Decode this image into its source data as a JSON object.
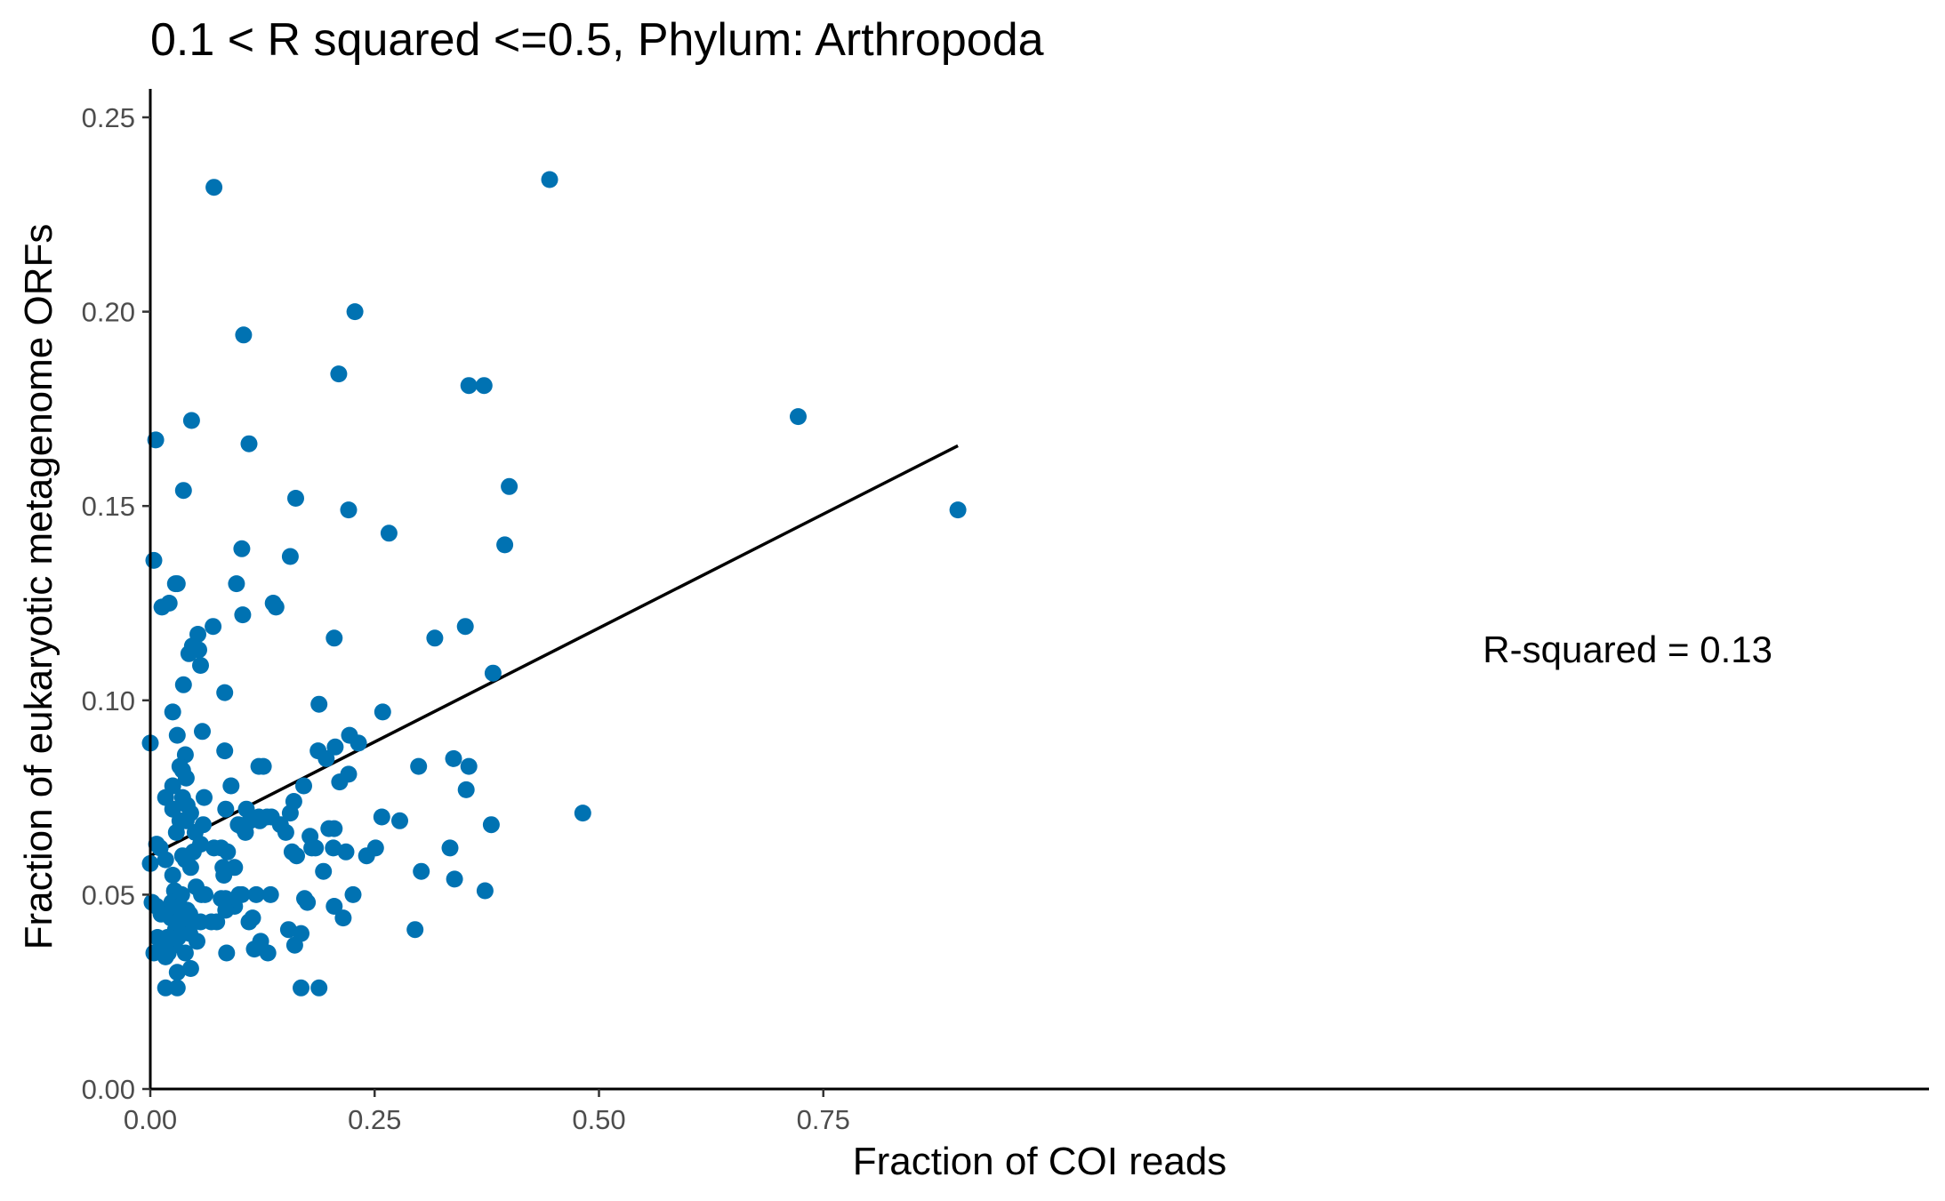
{
  "chart_data": {
    "type": "scatter",
    "title": "0.1 < R squared <=0.5, Phylum:  Arthropoda",
    "xlabel": "Fraction of COI reads",
    "ylabel": "Fraction of eukaryotic metagenome ORFs",
    "xlim": [
      0,
      0.99
    ],
    "ylim": [
      0,
      0.256
    ],
    "xticks": [
      {
        "value": 0,
        "label": "0.00"
      },
      {
        "value": 0.25,
        "label": "0.25"
      },
      {
        "value": 0.5,
        "label": "0.50"
      },
      {
        "value": 0.75,
        "label": "0.75"
      }
    ],
    "yticks": [
      {
        "value": 0,
        "label": "0.00"
      },
      {
        "value": 0.05,
        "label": "0.05"
      },
      {
        "value": 0.1,
        "label": "0.10"
      },
      {
        "value": 0.15,
        "label": "0.15"
      },
      {
        "value": 0.2,
        "label": "0.20"
      },
      {
        "value": 0.25,
        "label": "0.25"
      }
    ],
    "grid": false,
    "point_color": "#0072B2",
    "line_color": "#000000",
    "regression_line": {
      "x": [
        0,
        0.9
      ],
      "y": [
        0.06,
        0.1655
      ]
    },
    "annotation": "R-squared =  0.13",
    "points": [
      [
        0.071,
        0.232
      ],
      [
        0.445,
        0.234
      ],
      [
        0.228,
        0.2
      ],
      [
        0.104,
        0.194
      ],
      [
        0.21,
        0.184
      ],
      [
        0.355,
        0.181
      ],
      [
        0.372,
        0.181
      ],
      [
        0.722,
        0.173
      ],
      [
        0.046,
        0.172
      ],
      [
        0.006,
        0.167
      ],
      [
        0.11,
        0.166
      ],
      [
        0.4,
        0.155
      ],
      [
        0.037,
        0.154
      ],
      [
        0.162,
        0.152
      ],
      [
        0.9,
        0.149
      ],
      [
        0.221,
        0.149
      ],
      [
        0.266,
        0.143
      ],
      [
        0.395,
        0.14
      ],
      [
        0.102,
        0.139
      ],
      [
        0.156,
        0.137
      ],
      [
        0.004,
        0.136
      ],
      [
        0.028,
        0.13
      ],
      [
        0.03,
        0.13
      ],
      [
        0.096,
        0.13
      ],
      [
        0.137,
        0.125
      ],
      [
        0.021,
        0.125
      ],
      [
        0.013,
        0.124
      ],
      [
        0.14,
        0.124
      ],
      [
        0.103,
        0.122
      ],
      [
        0.07,
        0.119
      ],
      [
        0.351,
        0.119
      ],
      [
        0.053,
        0.117
      ],
      [
        0.317,
        0.116
      ],
      [
        0.205,
        0.116
      ],
      [
        0.047,
        0.114
      ],
      [
        0.054,
        0.113
      ],
      [
        0.043,
        0.112
      ],
      [
        0.056,
        0.109
      ],
      [
        0.382,
        0.107
      ],
      [
        0.037,
        0.104
      ],
      [
        0.083,
        0.102
      ],
      [
        0.259,
        0.097
      ],
      [
        0.025,
        0.097
      ],
      [
        0.188,
        0.099
      ],
      [
        0.058,
        0.092
      ],
      [
        0.222,
        0.091
      ],
      [
        0.03,
        0.091
      ],
      [
        0.232,
        0.089
      ],
      [
        0.0,
        0.089
      ],
      [
        0.206,
        0.088
      ],
      [
        0.187,
        0.087
      ],
      [
        0.083,
        0.087
      ],
      [
        0.039,
        0.086
      ],
      [
        0.338,
        0.085
      ],
      [
        0.196,
        0.085
      ],
      [
        0.299,
        0.083
      ],
      [
        0.355,
        0.083
      ],
      [
        0.121,
        0.083
      ],
      [
        0.126,
        0.083
      ],
      [
        0.033,
        0.083
      ],
      [
        0.036,
        0.082
      ],
      [
        0.221,
        0.081
      ],
      [
        0.04,
        0.08
      ],
      [
        0.211,
        0.079
      ],
      [
        0.171,
        0.078
      ],
      [
        0.025,
        0.078
      ],
      [
        0.09,
        0.078
      ],
      [
        0.352,
        0.077
      ],
      [
        0.017,
        0.075
      ],
      [
        0.06,
        0.075
      ],
      [
        0.036,
        0.075
      ],
      [
        0.16,
        0.074
      ],
      [
        0.041,
        0.073
      ],
      [
        0.084,
        0.072
      ],
      [
        0.156,
        0.071
      ],
      [
        0.107,
        0.072
      ],
      [
        0.025,
        0.072
      ],
      [
        0.482,
        0.071
      ],
      [
        0.045,
        0.071
      ],
      [
        0.121,
        0.07
      ],
      [
        0.13,
        0.07
      ],
      [
        0.135,
        0.07
      ],
      [
        0.258,
        0.07
      ],
      [
        0.033,
        0.069
      ],
      [
        0.111,
        0.069
      ],
      [
        0.278,
        0.069
      ],
      [
        0.04,
        0.069
      ],
      [
        0.059,
        0.068
      ],
      [
        0.098,
        0.068
      ],
      [
        0.122,
        0.069
      ],
      [
        0.145,
        0.068
      ],
      [
        0.38,
        0.068
      ],
      [
        0.205,
        0.067
      ],
      [
        0.199,
        0.067
      ],
      [
        0.104,
        0.067
      ],
      [
        0.151,
        0.066
      ],
      [
        0.178,
        0.065
      ],
      [
        0.05,
        0.066
      ],
      [
        0.029,
        0.066
      ],
      [
        0.106,
        0.066
      ],
      [
        0.056,
        0.063
      ],
      [
        0.007,
        0.063
      ],
      [
        0.011,
        0.062
      ],
      [
        0.071,
        0.062
      ],
      [
        0.079,
        0.062
      ],
      [
        0.18,
        0.062
      ],
      [
        0.184,
        0.062
      ],
      [
        0.204,
        0.062
      ],
      [
        0.251,
        0.062
      ],
      [
        0.334,
        0.062
      ],
      [
        0.086,
        0.061
      ],
      [
        0.048,
        0.061
      ],
      [
        0.036,
        0.06
      ],
      [
        0.158,
        0.061
      ],
      [
        0.218,
        0.061
      ],
      [
        0.163,
        0.06
      ],
      [
        0.241,
        0.06
      ],
      [
        0.039,
        0.059
      ],
      [
        0.017,
        0.059
      ],
      [
        0.0,
        0.058
      ],
      [
        0.045,
        0.057
      ],
      [
        0.081,
        0.057
      ],
      [
        0.094,
        0.057
      ],
      [
        0.193,
        0.056
      ],
      [
        0.302,
        0.056
      ],
      [
        0.025,
        0.055
      ],
      [
        0.082,
        0.055
      ],
      [
        0.339,
        0.054
      ],
      [
        0.051,
        0.052
      ],
      [
        0.057,
        0.05
      ],
      [
        0.027,
        0.051
      ],
      [
        0.061,
        0.05
      ],
      [
        0.099,
        0.05
      ],
      [
        0.102,
        0.05
      ],
      [
        0.373,
        0.051
      ],
      [
        0.226,
        0.05
      ],
      [
        0.118,
        0.05
      ],
      [
        0.134,
        0.05
      ],
      [
        0.035,
        0.05
      ],
      [
        0.084,
        0.049
      ],
      [
        0.079,
        0.049
      ],
      [
        0.172,
        0.049
      ],
      [
        0.024,
        0.048
      ],
      [
        0.002,
        0.048
      ],
      [
        0.175,
        0.048
      ],
      [
        0.007,
        0.047
      ],
      [
        0.205,
        0.047
      ],
      [
        0.094,
        0.047
      ],
      [
        0.026,
        0.047
      ],
      [
        0.033,
        0.047
      ],
      [
        0.084,
        0.046
      ],
      [
        0.041,
        0.046
      ],
      [
        0.012,
        0.045
      ],
      [
        0.044,
        0.045
      ],
      [
        0.023,
        0.044
      ],
      [
        0.215,
        0.044
      ],
      [
        0.114,
        0.044
      ],
      [
        0.035,
        0.044
      ],
      [
        0.03,
        0.043
      ],
      [
        0.056,
        0.043
      ],
      [
        0.074,
        0.043
      ],
      [
        0.11,
        0.043
      ],
      [
        0.068,
        0.043
      ],
      [
        0.039,
        0.042
      ],
      [
        0.028,
        0.041
      ],
      [
        0.154,
        0.041
      ],
      [
        0.295,
        0.041
      ],
      [
        0.044,
        0.04
      ],
      [
        0.034,
        0.04
      ],
      [
        0.168,
        0.04
      ],
      [
        0.031,
        0.039
      ],
      [
        0.019,
        0.039
      ],
      [
        0.008,
        0.039
      ],
      [
        0.052,
        0.038
      ],
      [
        0.123,
        0.038
      ],
      [
        0.017,
        0.038
      ],
      [
        0.014,
        0.037
      ],
      [
        0.027,
        0.037
      ],
      [
        0.161,
        0.037
      ],
      [
        0.116,
        0.036
      ],
      [
        0.004,
        0.035
      ],
      [
        0.039,
        0.035
      ],
      [
        0.02,
        0.035
      ],
      [
        0.085,
        0.035
      ],
      [
        0.131,
        0.035
      ],
      [
        0.017,
        0.034
      ],
      [
        0.045,
        0.031
      ],
      [
        0.03,
        0.03
      ],
      [
        0.168,
        0.026
      ],
      [
        0.017,
        0.026
      ],
      [
        0.03,
        0.026
      ],
      [
        0.188,
        0.026
      ]
    ]
  }
}
